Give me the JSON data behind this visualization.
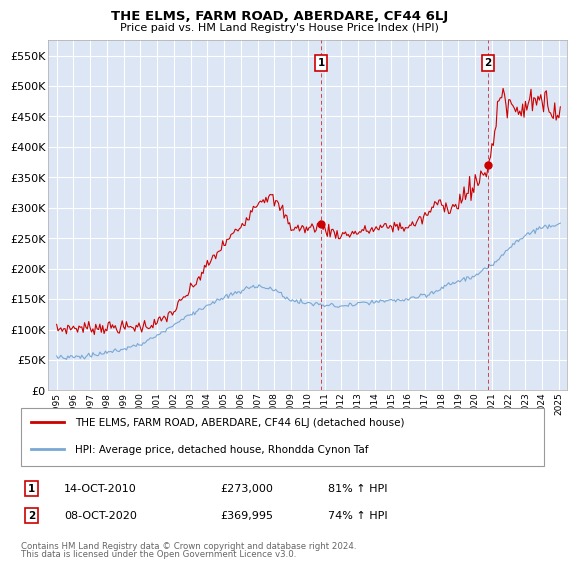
{
  "title": "THE ELMS, FARM ROAD, ABERDARE, CF44 6LJ",
  "subtitle": "Price paid vs. HM Land Registry's House Price Index (HPI)",
  "legend_label_red": "THE ELMS, FARM ROAD, ABERDARE, CF44 6LJ (detached house)",
  "legend_label_blue": "HPI: Average price, detached house, Rhondda Cynon Taf",
  "annotation1_label": "1",
  "annotation1_date": "14-OCT-2010",
  "annotation1_price": "£273,000",
  "annotation1_hpi": "81% ↑ HPI",
  "annotation1_year": 2010.79,
  "annotation1_value": 273000,
  "annotation2_label": "2",
  "annotation2_date": "08-OCT-2020",
  "annotation2_price": "£369,995",
  "annotation2_hpi": "74% ↑ HPI",
  "annotation2_year": 2020.77,
  "annotation2_value": 369995,
  "footer1": "Contains HM Land Registry data © Crown copyright and database right 2024.",
  "footer2": "This data is licensed under the Open Government Licence v3.0.",
  "ylim": [
    0,
    575000
  ],
  "yticks": [
    0,
    50000,
    100000,
    150000,
    200000,
    250000,
    300000,
    350000,
    400000,
    450000,
    500000,
    550000
  ],
  "xlim_start": 1994.5,
  "xlim_end": 2025.5,
  "plot_bg_color": "#dce6f5",
  "red_color": "#cc0000",
  "blue_color": "#7aa8d4",
  "grid_color": "#ffffff",
  "marker1_x": 2010.79,
  "marker2_x": 2020.77
}
